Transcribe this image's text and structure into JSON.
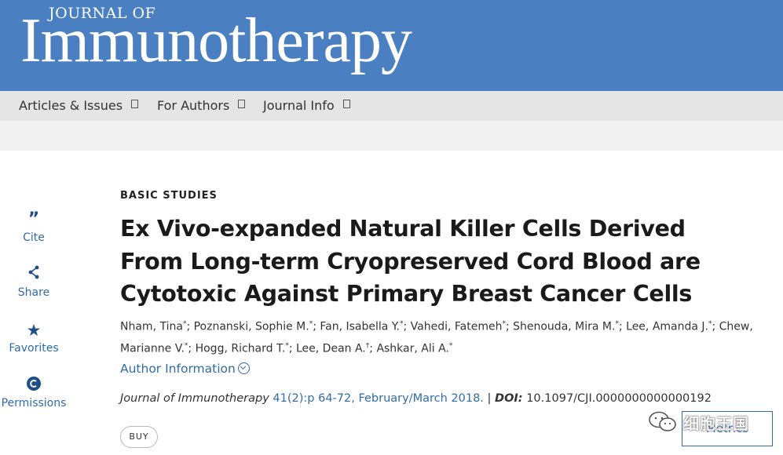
{
  "header": {
    "logo_top": "JOURNAL OF",
    "logo_main": "Immunotherapy",
    "brand_color": "#4a80c2"
  },
  "nav": {
    "items": [
      {
        "label": "Articles & Issues"
      },
      {
        "label": "For Authors"
      },
      {
        "label": "Journal Info"
      }
    ]
  },
  "rail": {
    "cite": {
      "label": "Cite",
      "icon": "quote-icon",
      "glyph": "”"
    },
    "share": {
      "label": "Share",
      "icon": "share-icon",
      "glyph": "<"
    },
    "favorites": {
      "label": "Favorites",
      "icon": "star-icon",
      "glyph": "★"
    },
    "permissions": {
      "label": "Permissions",
      "icon": "copyright-icon",
      "glyph": "©"
    }
  },
  "article": {
    "section": "BASIC STUDIES",
    "title": "Ex Vivo-expanded Natural Killer Cells Derived From Long-term Cryopreserved Cord Blood are Cytotoxic Against Primary Breast Cancer Cells",
    "authors": [
      {
        "name": "Nham, Tina",
        "mark": "*"
      },
      {
        "name": "Poznanski, Sophie M.",
        "mark": "*"
      },
      {
        "name": "Fan, Isabella Y.",
        "mark": "*"
      },
      {
        "name": "Vahedi, Fatemeh",
        "mark": "*"
      },
      {
        "name": "Shenouda, Mira M.",
        "mark": "*"
      },
      {
        "name": "Lee, Amanda J.",
        "mark": "*"
      },
      {
        "name": "Chew, Marianne V.",
        "mark": "*"
      },
      {
        "name": "Hogg, Richard T.",
        "mark": "*"
      },
      {
        "name": "Lee, Dean A.",
        "mark": "†"
      },
      {
        "name": "Ashkar, Ali A.",
        "mark": "*"
      }
    ],
    "author_info_label": "Author Information",
    "citation": {
      "journal": "Journal of Immunotherapy",
      "issue_link": "41(2):p 64-72, February/March 2018.",
      "separator": "|",
      "doi_label": "DOI:",
      "doi": "10.1097/CJI.0000000000000192"
    },
    "buy_label": "BUY",
    "metrics_label": "Metrics"
  },
  "watermark": {
    "text": "细胞王国"
  }
}
